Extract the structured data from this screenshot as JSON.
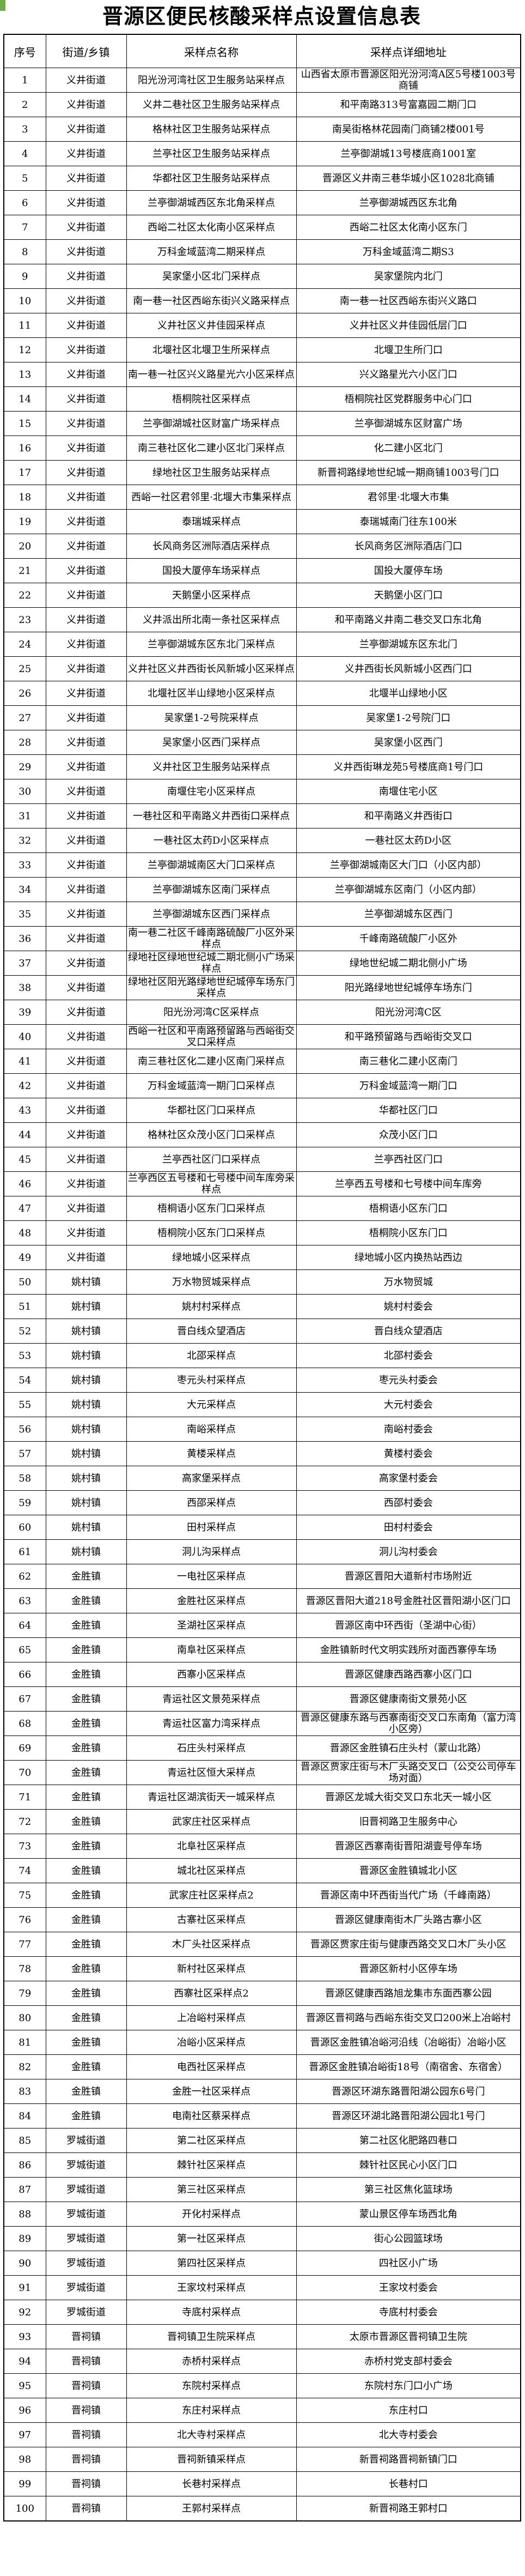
{
  "page": {
    "title": "晋源区便民核酸采样点设置信息表"
  },
  "colors": {
    "background": "#ffffff",
    "border": "#000000",
    "text": "#000000",
    "corner_accent_green": "#70ad47"
  },
  "table": {
    "headers": [
      "序号",
      "街道/乡镇",
      "采样点名称",
      "采样点详细地址"
    ],
    "rows": [
      [
        "1",
        "义井街道",
        "阳光汾河湾社区卫生服务站采样点",
        "山西省太原市晋源区阳光汾河湾A区5号楼1003号商铺"
      ],
      [
        "2",
        "义井街道",
        "义井二巷社区卫生服务站采样点",
        "和平南路313号富嘉园二期门口"
      ],
      [
        "3",
        "义井街道",
        "格林社区卫生服务站采样点",
        "南吴街格林花园南门商铺2楼001号"
      ],
      [
        "4",
        "义井街道",
        "兰亭社区卫生服务站采样点",
        "兰亭御湖城13号楼底商1001室"
      ],
      [
        "5",
        "义井街道",
        "华都社区卫生服务站采样点",
        "晋源区义井南三巷华城小区1028北商铺"
      ],
      [
        "6",
        "义井街道",
        "兰亭御湖城西区东北角采样点",
        "兰亭御湖城西区东北角"
      ],
      [
        "7",
        "义井街道",
        "西峪二社区太化南小区采样点",
        "西峪二社区太化南小区东门"
      ],
      [
        "8",
        "义井街道",
        "万科金域蓝湾二期采样点",
        "万科金域蓝湾二期S3"
      ],
      [
        "9",
        "义井街道",
        "吴家堡小区北门采样点",
        "吴家堡院内北门"
      ],
      [
        "10",
        "义井街道",
        "南一巷一社区西峪东街兴义路采样点",
        "南一巷一社区西峪东街兴义路口"
      ],
      [
        "11",
        "义井街道",
        "义井社区义井佳园采样点",
        "义井社区义井佳园低层门口"
      ],
      [
        "12",
        "义井街道",
        "北堰社区北堰卫生所采样点",
        "北堰卫生所门口"
      ],
      [
        "13",
        "义井街道",
        "南一巷一社区兴义路星光六小区采样点",
        "兴义路星光六小区门口"
      ],
      [
        "14",
        "义井街道",
        "梧桐院社区采样点",
        "梧桐院社区党群服务中心门口"
      ],
      [
        "15",
        "义井街道",
        "兰亭御湖城社区财富广场采样点",
        "兰亭御湖城东区财富广场"
      ],
      [
        "16",
        "义井街道",
        "南三巷社区化二建小区北门采样点",
        "化二建小区北门"
      ],
      [
        "17",
        "义井街道",
        "绿地社区卫生服务站采样点",
        "新晋祠路绿地世纪城一期商铺1003号门口"
      ],
      [
        "18",
        "义井街道",
        "西峪一社区君邻里·北堰大市集采样点",
        "君邻里·北堰大市集"
      ],
      [
        "19",
        "义井街道",
        "泰瑞城采样点",
        "泰瑞城南门往东100米"
      ],
      [
        "20",
        "义井街道",
        "长风商务区洲际酒店采样点",
        "长风商务区洲际酒店门口"
      ],
      [
        "21",
        "义井街道",
        "国投大厦停车场采样点",
        "国投大厦停车场"
      ],
      [
        "22",
        "义井街道",
        "天鹅堡小区采样点",
        "天鹅堡小区门口"
      ],
      [
        "23",
        "义井街道",
        "义井派出所北南一条社区采样点",
        "和平南路义井南二巷交叉口东北角"
      ],
      [
        "24",
        "义井街道",
        "兰亭御湖城东区东北门采样点",
        "兰亭御湖城东区东北门"
      ],
      [
        "25",
        "义井街道",
        "义井社区义井西街长风新城小区采样点",
        "义井西街长风新城小区西门口"
      ],
      [
        "26",
        "义井街道",
        "北堰社区半山绿地小区采样点",
        "北堰半山绿地小区"
      ],
      [
        "27",
        "义井街道",
        "吴家堡1-2号院采样点",
        "吴家堡1-2号院门口"
      ],
      [
        "28",
        "义井街道",
        "吴家堡小区西门采样点",
        "吴家堡小区西门"
      ],
      [
        "29",
        "义井街道",
        "义井社区卫生服务站采样点",
        "义井西街琳龙苑5号楼底商1号门口"
      ],
      [
        "30",
        "义井街道",
        "南堰住宅小区采样点",
        "南堰住宅小区"
      ],
      [
        "31",
        "义井街道",
        "一巷社区和平南路义井西街口采样点",
        "和平南路义井西街口"
      ],
      [
        "32",
        "义井街道",
        "一巷社区太药D小区采样点",
        "一巷社区太药D小区"
      ],
      [
        "33",
        "义井街道",
        "兰亭御湖城南区大门口采样点",
        "兰亭御湖城南区大门口（小区内部）"
      ],
      [
        "34",
        "义井街道",
        "兰亭御湖城东区南门采样点",
        "兰亭御湖城东区南门（小区内部）"
      ],
      [
        "35",
        "义井街道",
        "兰亭御湖城东区西门采样点",
        "兰亭御湖城东区西门"
      ],
      [
        "36",
        "义井街道",
        "南一巷二社区千峰南路硫酸厂小区外采样点",
        "千峰南路硫酸厂小区外"
      ],
      [
        "37",
        "义井街道",
        "绿地社区绿地世纪城二期北侧小广场采样点",
        "绿地世纪城二期北侧小广场"
      ],
      [
        "38",
        "义井街道",
        "绿地社区阳光路绿地世纪城停车场东门采样点",
        "阳光路绿地世纪城停车场东门"
      ],
      [
        "39",
        "义井街道",
        "阳光汾河湾C区采样点",
        "阳光汾河湾C区"
      ],
      [
        "40",
        "义井街道",
        "西峪一社区和平南路预留路与西峪街交叉口采样点",
        "和平路预留路与西峪街交叉口"
      ],
      [
        "41",
        "义井街道",
        "南三巷社区化二建小区南门采样点",
        "南三巷化二建小区南门"
      ],
      [
        "42",
        "义井街道",
        "万科金域蓝湾一期门口采样点",
        "万科金域蓝湾一期门口"
      ],
      [
        "43",
        "义井街道",
        "华都社区门口采样点",
        "华都社区门口"
      ],
      [
        "44",
        "义井街道",
        "格林社区众茂小区门口采样点",
        "众茂小区门口"
      ],
      [
        "45",
        "义井街道",
        "兰亭西社区门口采样点",
        "兰亭西社区门口"
      ],
      [
        "46",
        "义井街道",
        "兰亭西区五号楼和七号楼中间车库旁采样点",
        "兰亭西五号楼和七号楼中间车库旁"
      ],
      [
        "47",
        "义井街道",
        "梧桐语小区东门口采样点",
        "梧桐语小区东门口"
      ],
      [
        "48",
        "义井街道",
        "梧桐院小区东门口采样点",
        "梧桐院小区东门口"
      ],
      [
        "49",
        "义井街道",
        "绿地城小区采样点",
        "绿地城小区内换热站西边"
      ],
      [
        "50",
        "姚村镇",
        "万水物贸城采样点",
        "万水物贸城"
      ],
      [
        "51",
        "姚村镇",
        "姚村村采样点",
        "姚村村委会"
      ],
      [
        "52",
        "姚村镇",
        "晋白线众望酒店",
        "晋白线众望酒店"
      ],
      [
        "53",
        "姚村镇",
        "北邵采样点",
        "北邵村委会"
      ],
      [
        "54",
        "姚村镇",
        "枣元头村采样点",
        "枣元头村委会"
      ],
      [
        "55",
        "姚村镇",
        "大元采样点",
        "大元村委会"
      ],
      [
        "56",
        "姚村镇",
        "南峪采样点",
        "南峪村委会"
      ],
      [
        "57",
        "姚村镇",
        "黄楼采样点",
        "黄楼村委会"
      ],
      [
        "58",
        "姚村镇",
        "高家堡采样点",
        "高家堡村委会"
      ],
      [
        "59",
        "姚村镇",
        "西邵采样点",
        "西邵村委会"
      ],
      [
        "60",
        "姚村镇",
        "田村采样点",
        "田村村委会"
      ],
      [
        "61",
        "姚村镇",
        "洞儿沟采样点",
        "洞儿沟村委会"
      ],
      [
        "62",
        "金胜镇",
        "一电社区采样点",
        "晋源区晋阳大道新村市场附近"
      ],
      [
        "63",
        "金胜镇",
        "金胜社区采样点",
        "晋源区晋阳大道218号金胜社区晋阳湖小区门口"
      ],
      [
        "64",
        "金胜镇",
        "圣湖社区采样点",
        "晋源区南中环西街（圣湖中心街）"
      ],
      [
        "65",
        "金胜镇",
        "南阜社区采样点",
        "金胜镇新时代文明实践所对面西寨停车场"
      ],
      [
        "66",
        "金胜镇",
        "西寨小区采样点",
        "晋源区健康西路西寨小区门口"
      ],
      [
        "67",
        "金胜镇",
        "青运社区文景苑采样点",
        "晋源区健康南街文景苑小区"
      ],
      [
        "68",
        "金胜镇",
        "青运社区富力湾采样点",
        "晋源区健康东路与西寨南街交叉口东南角（富力湾小区旁）"
      ],
      [
        "69",
        "金胜镇",
        "石庄头村采样点",
        "晋源区金胜镇石庄头村（蒙山北路）"
      ],
      [
        "70",
        "金胜镇",
        "青运社区恒大采样点",
        "晋源区贾家庄街与木厂头路交叉口（公交公司停车场对面）"
      ],
      [
        "71",
        "金胜镇",
        "青运社区湖滨街天一城采样点",
        "晋源区龙城大街交叉口东北天一城小区"
      ],
      [
        "72",
        "金胜镇",
        "武家庄社区采样点",
        "旧晋祠路卫生服务中心"
      ],
      [
        "73",
        "金胜镇",
        "北阜社区采样点",
        "晋源区西寨南街晋阳湖壹号停车场"
      ],
      [
        "74",
        "金胜镇",
        "城北社区采样点",
        "晋源区金胜镇城北小区"
      ],
      [
        "75",
        "金胜镇",
        "武家庄社区采样点2",
        "晋源区南中环西街当代广场（千峰南路）"
      ],
      [
        "76",
        "金胜镇",
        "古寨社区采样点",
        "晋源区健康南街木厂头路古寨小区"
      ],
      [
        "77",
        "金胜镇",
        "木厂头社区采样点",
        "晋源区贾家庄街与健康西路交叉口木厂头小区"
      ],
      [
        "78",
        "金胜镇",
        "新村社区采样点",
        "晋源区新村小区停车场"
      ],
      [
        "79",
        "金胜镇",
        "西寨社区采样点2",
        "晋源区健康西路旭龙集市东面西寨公园"
      ],
      [
        "80",
        "金胜镇",
        "上冶峪村采样点",
        "晋源区晋祠路与西峪东街交叉口200米上冶峪村"
      ],
      [
        "81",
        "金胜镇",
        "冶峪小区采样点",
        "晋源区金胜镇冶峪河沿线（冶峪街）冶峪小区"
      ],
      [
        "82",
        "金胜镇",
        "电西社区采样点",
        "晋源区金胜镇冶峪街18号（南宿舍、东宿舍）"
      ],
      [
        "83",
        "金胜镇",
        "金胜一社区采样点",
        "晋源区环湖东路晋阳湖公园东6号门"
      ],
      [
        "84",
        "金胜镇",
        "电南社区蔡采样点",
        "晋源区环湖北路晋阳湖公园北1号门"
      ],
      [
        "85",
        "罗城街道",
        "第二社区采样点",
        "第二社区化肥路四巷口"
      ],
      [
        "86",
        "罗城街道",
        "棘针社区采样点",
        "棘针社区民心小区门口"
      ],
      [
        "87",
        "罗城街道",
        "第三社区采样点",
        "第三社区焦化篮球场"
      ],
      [
        "88",
        "罗城街道",
        "开化村采样点",
        "蒙山景区停车场西北角"
      ],
      [
        "89",
        "罗城街道",
        "第一社区采样点",
        "街心公园篮球场"
      ],
      [
        "90",
        "罗城街道",
        "第四社区采样点",
        "四社区小广场"
      ],
      [
        "91",
        "罗城街道",
        "王家坟村采样点",
        "王家坟村委会"
      ],
      [
        "92",
        "罗城街道",
        "寺底村采样点",
        "寺底村村委会"
      ],
      [
        "93",
        "晋祠镇",
        "晋祠镇卫生院采样点",
        "太原市晋源区晋祠镇卫生院"
      ],
      [
        "94",
        "晋祠镇",
        "赤桥村采样点",
        "赤桥村党支部村委会"
      ],
      [
        "95",
        "晋祠镇",
        "东院村采样点",
        "东院村东门口小广场"
      ],
      [
        "96",
        "晋祠镇",
        "东庄村采样点",
        "东庄村口"
      ],
      [
        "97",
        "晋祠镇",
        "北大寺村采样点",
        "北大寺村委会"
      ],
      [
        "98",
        "晋祠镇",
        "晋祠新镇采样点",
        "新晋祠路晋祠新镇门口"
      ],
      [
        "99",
        "晋祠镇",
        "长巷村采样点",
        "长巷村口"
      ],
      [
        "100",
        "晋祠镇",
        "王郭村采样点",
        "新晋祠路王郭村口"
      ]
    ]
  }
}
